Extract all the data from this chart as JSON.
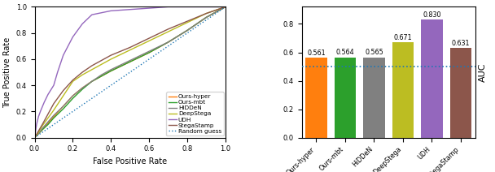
{
  "bar_categories": [
    "Ours-hyper",
    "Ours-mbt",
    "HiDDeN",
    "DeepStega",
    "UDH",
    "StegaStamp"
  ],
  "bar_values": [
    0.561,
    0.564,
    0.565,
    0.671,
    0.83,
    0.631
  ],
  "bar_colors": [
    "#ff7f0e",
    "#2ca02c",
    "#808080",
    "#bcbd22",
    "#9467bd",
    "#8c564b"
  ],
  "random_guess_auc": 0.5,
  "ylabel_bar": "AUC",
  "roc_curves": {
    "Ours-hyper": {
      "color": "#ff7f0e",
      "x": [
        0.0,
        0.02,
        0.04,
        0.07,
        0.1,
        0.15,
        0.2,
        0.25,
        0.3,
        0.35,
        0.4,
        0.5,
        0.6,
        0.7,
        0.8,
        0.9,
        1.0
      ],
      "y": [
        0.0,
        0.03,
        0.06,
        0.11,
        0.16,
        0.24,
        0.32,
        0.38,
        0.43,
        0.47,
        0.51,
        0.58,
        0.65,
        0.73,
        0.82,
        0.92,
        1.0
      ]
    },
    "Ours-mbt": {
      "color": "#2ca02c",
      "x": [
        0.0,
        0.02,
        0.04,
        0.07,
        0.1,
        0.15,
        0.2,
        0.25,
        0.3,
        0.35,
        0.4,
        0.5,
        0.6,
        0.7,
        0.8,
        0.9,
        1.0
      ],
      "y": [
        0.0,
        0.03,
        0.06,
        0.1,
        0.15,
        0.22,
        0.3,
        0.37,
        0.43,
        0.47,
        0.51,
        0.58,
        0.65,
        0.73,
        0.82,
        0.92,
        1.0
      ]
    },
    "HiDDeN": {
      "color": "#808080",
      "x": [
        0.0,
        0.02,
        0.04,
        0.07,
        0.1,
        0.15,
        0.2,
        0.25,
        0.3,
        0.35,
        0.4,
        0.5,
        0.6,
        0.7,
        0.8,
        0.9,
        1.0
      ],
      "y": [
        0.0,
        0.03,
        0.07,
        0.12,
        0.17,
        0.24,
        0.32,
        0.38,
        0.43,
        0.48,
        0.52,
        0.59,
        0.66,
        0.73,
        0.82,
        0.92,
        1.0
      ]
    },
    "DeepStega": {
      "color": "#bcbd22",
      "x": [
        0.0,
        0.02,
        0.04,
        0.07,
        0.1,
        0.15,
        0.2,
        0.25,
        0.3,
        0.35,
        0.4,
        0.5,
        0.6,
        0.7,
        0.8,
        0.9,
        1.0
      ],
      "y": [
        0.0,
        0.04,
        0.09,
        0.15,
        0.21,
        0.32,
        0.43,
        0.48,
        0.52,
        0.56,
        0.6,
        0.67,
        0.74,
        0.81,
        0.88,
        0.95,
        1.0
      ]
    },
    "UDH": {
      "color": "#9467bd",
      "x": [
        0.0,
        0.005,
        0.01,
        0.02,
        0.03,
        0.05,
        0.07,
        0.1,
        0.12,
        0.15,
        0.2,
        0.25,
        0.3,
        0.4,
        0.5,
        0.6,
        0.7,
        0.8,
        0.9,
        1.0
      ],
      "y": [
        0.0,
        0.05,
        0.1,
        0.16,
        0.2,
        0.27,
        0.33,
        0.4,
        0.5,
        0.63,
        0.77,
        0.87,
        0.94,
        0.97,
        0.98,
        0.99,
        1.0,
        1.0,
        1.0,
        1.0
      ]
    },
    "StegaStamp": {
      "color": "#8c564b",
      "x": [
        0.0,
        0.02,
        0.04,
        0.07,
        0.1,
        0.15,
        0.2,
        0.25,
        0.3,
        0.35,
        0.4,
        0.5,
        0.6,
        0.7,
        0.8,
        0.9,
        1.0
      ],
      "y": [
        0.0,
        0.05,
        0.1,
        0.18,
        0.26,
        0.36,
        0.44,
        0.5,
        0.55,
        0.59,
        0.63,
        0.69,
        0.76,
        0.83,
        0.89,
        0.95,
        1.0
      ]
    }
  },
  "roc_order": [
    "Ours-hyper",
    "Ours-mbt",
    "HiDDeN",
    "DeepStega",
    "UDH",
    "StegaStamp"
  ],
  "xlabel_roc": "False Positive Rate",
  "ylabel_roc": "True Positive Rate",
  "bar_value_labels": [
    "0.561",
    "0.564",
    "0.565",
    "0.671",
    "0.830",
    "0.631"
  ],
  "roc_legend_order": [
    "Ours-hyper",
    "Ours-mbt",
    "HiDDeN",
    "DeepStega",
    "UDH",
    "StegaStamp",
    "Random guess"
  ],
  "random_guess_color": "#1f77b4"
}
